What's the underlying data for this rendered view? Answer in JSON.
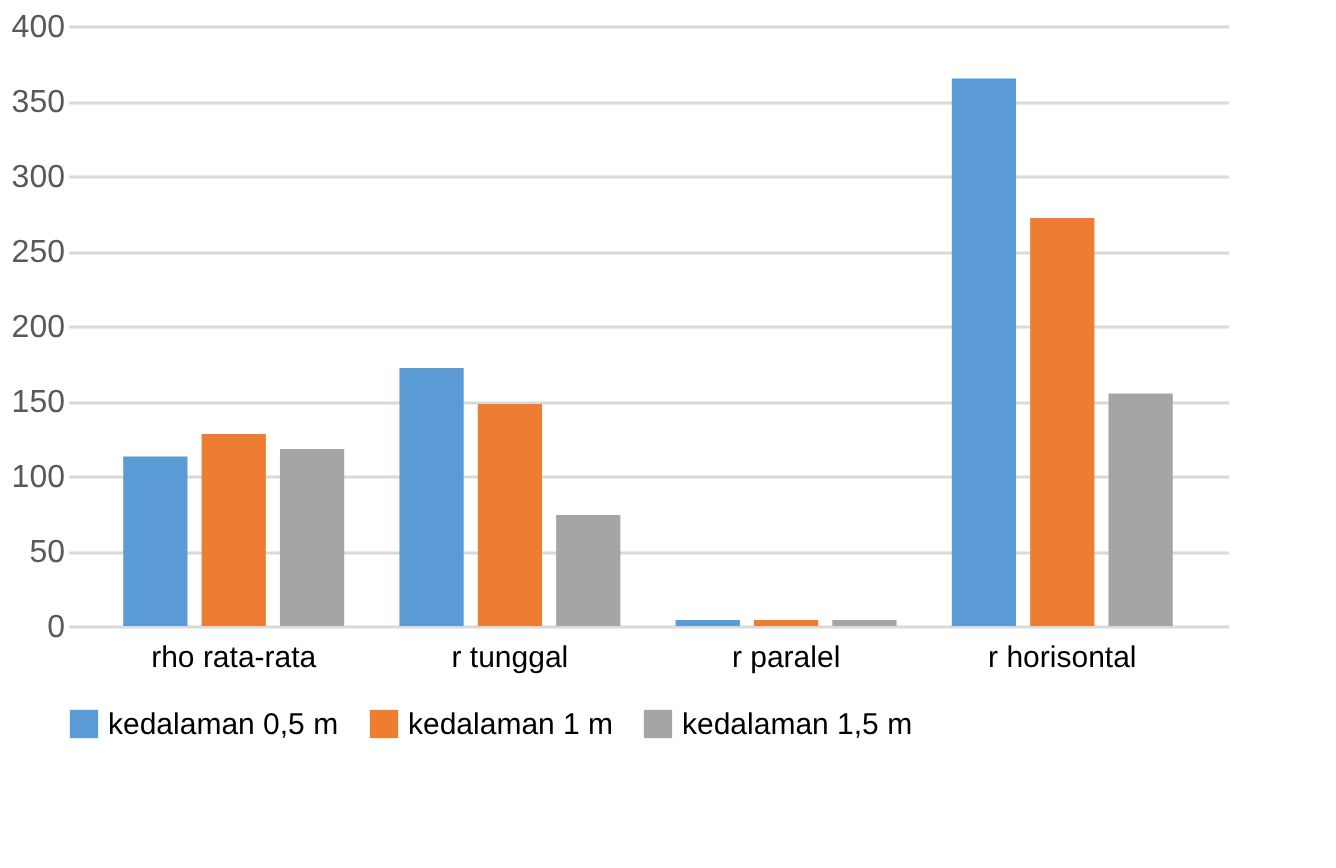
{
  "chart_data": {
    "type": "bar",
    "categories": [
      "rho rata-rata",
      "r tunggal",
      "r paralel",
      "r horisontal"
    ],
    "series": [
      {
        "name": "kedalaman 0,5 m",
        "color": "#5b9bd5",
        "values": [
          113,
          172,
          4,
          365
        ]
      },
      {
        "name": "kedalaman 1 m",
        "color": "#ed7d31",
        "values": [
          128,
          148,
          4,
          272
        ]
      },
      {
        "name": "kedalaman 1,5 m",
        "color": "#a5a5a5",
        "values": [
          118,
          74,
          4,
          155
        ]
      }
    ],
    "ylim": [
      0,
      400
    ],
    "yticks": [
      0,
      50,
      100,
      150,
      200,
      250,
      300,
      350,
      400
    ],
    "grid": "y",
    "legend": "bottom"
  }
}
